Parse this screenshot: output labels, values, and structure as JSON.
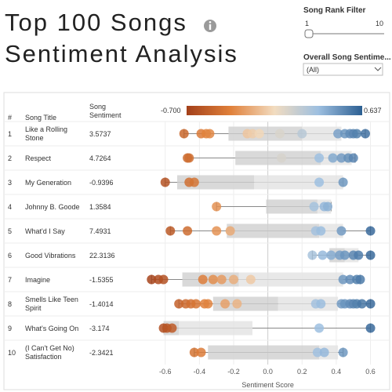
{
  "header": {
    "title_line1": "Top 100 Songs",
    "title_line2": "Sentiment Analysis"
  },
  "filters": {
    "rank_label": "Song Rank Filter",
    "rank_range": [
      1,
      10
    ],
    "sentiment_label": "Overall Song Sentime...",
    "sentiment_value": "(All)"
  },
  "chart_data": {
    "type": "dot-box",
    "columns": [
      "#",
      "Song Title",
      "Song Sentiment"
    ],
    "x_label": "Sentiment Score",
    "xlim": [
      -0.75,
      0.68
    ],
    "xticks": [
      -0.6,
      -0.4,
      -0.2,
      {
        "value": 0,
        "label": "0.0"
      },
      0.2,
      0.4,
      0.6
    ],
    "color_range": [
      {
        "value": -0.7,
        "label": "-0.700"
      },
      {
        "value": 0.637,
        "label": "0.637"
      }
    ],
    "color_stops": [
      "#a3401a",
      "#e0803a",
      "#f2dcc0",
      "#9dbfe0",
      "#2c5f92"
    ],
    "rows": [
      {
        "rank": 1,
        "title": "Like a Rolling Stone",
        "sentiment": 3.5737,
        "dots": [
          -0.49,
          -0.39,
          -0.36,
          -0.34,
          -0.12,
          -0.09,
          -0.05,
          0.07,
          0.2,
          0.41,
          0.45,
          0.48,
          0.5,
          0.52,
          0.57
        ],
        "box": [
          -0.49,
          -0.23,
          0.2,
          0.43,
          0.57
        ]
      },
      {
        "rank": 2,
        "title": "Respect",
        "sentiment": 4.7264,
        "dots": [
          -0.47,
          -0.46,
          0.08,
          0.3,
          0.38,
          0.43,
          0.47,
          0.5
        ],
        "box": [
          -0.47,
          -0.19,
          0.31,
          0.49,
          0.51
        ]
      },
      {
        "rank": 3,
        "title": "My Generation",
        "sentiment": -0.9396,
        "dots": [
          -0.6,
          -0.46,
          -0.43,
          0.3,
          0.44
        ],
        "box": [
          -0.6,
          -0.53,
          -0.08,
          0.44,
          0.44
        ]
      },
      {
        "rank": 4,
        "title": "Johnny B. Goode",
        "sentiment": 1.3584,
        "dots": [
          -0.3,
          0.27,
          0.33,
          0.35
        ],
        "box": [
          -0.3,
          -0.01,
          0.29,
          0.37,
          0.37
        ]
      },
      {
        "rank": 5,
        "title": "What'd I Say",
        "sentiment": 7.4931,
        "dots": [
          -0.57,
          -0.47,
          -0.3,
          -0.22,
          0.28,
          0.31,
          0.43,
          0.6
        ],
        "box": [
          -0.57,
          -0.24,
          0.3,
          0.44,
          0.6
        ]
      },
      {
        "rank": 6,
        "title": "Good Vibrations",
        "sentiment": 22.3136,
        "dots": [
          0.26,
          0.32,
          0.37,
          0.42,
          0.45,
          0.5,
          0.53,
          0.6
        ],
        "box": [
          0.26,
          0.36,
          0.45,
          0.53,
          0.6
        ]
      },
      {
        "rank": 7,
        "title": "Imagine",
        "sentiment": -1.5355,
        "dots": [
          -0.68,
          -0.64,
          -0.61,
          -0.38,
          -0.32,
          -0.27,
          -0.2,
          -0.1,
          0.44,
          0.48,
          0.52,
          0.54
        ],
        "box": [
          -0.68,
          -0.5,
          -0.17,
          0.44,
          0.54
        ]
      },
      {
        "rank": 8,
        "title": "Smells Like Teen Spirit",
        "sentiment": -1.4014,
        "dots": [
          -0.52,
          -0.48,
          -0.45,
          -0.42,
          -0.37,
          -0.35,
          -0.25,
          -0.18,
          0.28,
          0.31,
          0.43,
          0.45,
          0.48,
          0.5,
          0.52,
          0.55,
          0.6
        ],
        "box": [
          -0.52,
          -0.32,
          0.06,
          0.41,
          0.6
        ]
      },
      {
        "rank": 9,
        "title": "What's Going On",
        "sentiment": -3.174,
        "dots": [
          -0.61,
          -0.59,
          -0.56,
          0.3,
          0.6
        ],
        "box": [
          -0.61,
          -0.61,
          -0.52,
          -0.09,
          0.6
        ]
      },
      {
        "rank": 10,
        "title": "(I Can't Get No) Satisfaction",
        "sentiment": -2.3421,
        "dots": [
          -0.43,
          -0.39,
          0.29,
          0.33,
          0.44
        ],
        "box": [
          -0.43,
          -0.35,
          0.3,
          0.41,
          0.44
        ]
      }
    ]
  }
}
